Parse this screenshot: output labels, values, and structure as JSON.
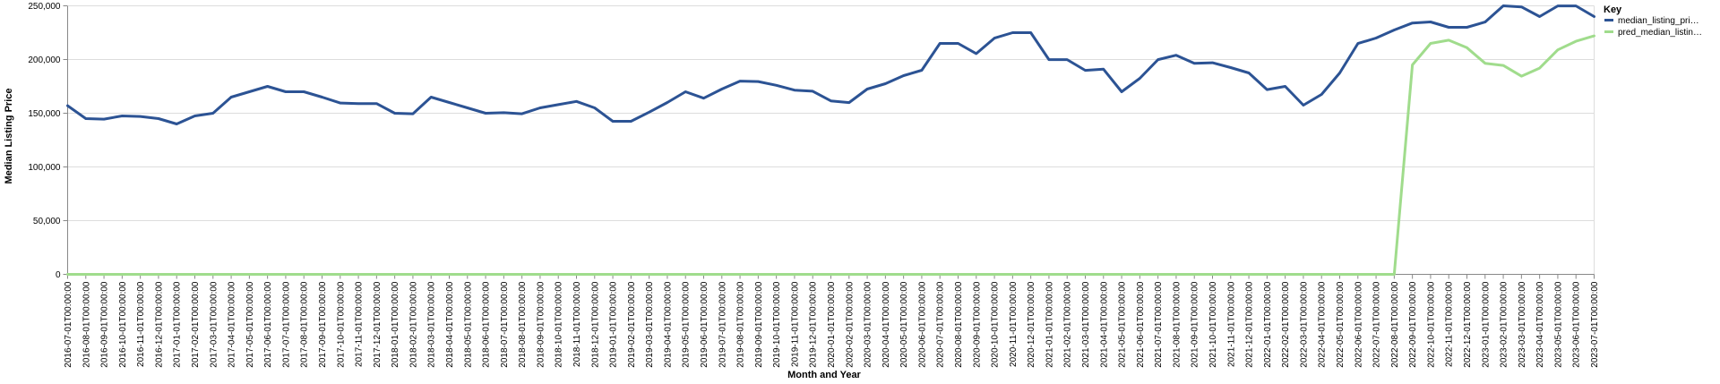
{
  "chart_data": {
    "type": "line",
    "xlabel": "Month and Year",
    "ylabel": "Median Listing Price",
    "ylim": [
      0,
      250000
    ],
    "y_ticks": [
      "0",
      "50,000",
      "100,000",
      "150,000",
      "200,000",
      "250,000"
    ],
    "grid": true,
    "legend": {
      "title": "Key",
      "placement": "top-right"
    },
    "x": [
      "2016-07-01T00:00:00",
      "2016-08-01T00:00:00",
      "2016-09-01T00:00:00",
      "2016-10-01T00:00:00",
      "2016-11-01T00:00:00",
      "2016-12-01T00:00:00",
      "2017-01-01T00:00:00",
      "2017-02-01T00:00:00",
      "2017-03-01T00:00:00",
      "2017-04-01T00:00:00",
      "2017-05-01T00:00:00",
      "2017-06-01T00:00:00",
      "2017-07-01T00:00:00",
      "2017-08-01T00:00:00",
      "2017-09-01T00:00:00",
      "2017-10-01T00:00:00",
      "2017-11-01T00:00:00",
      "2017-12-01T00:00:00",
      "2018-01-01T00:00:00",
      "2018-02-01T00:00:00",
      "2018-03-01T00:00:00",
      "2018-04-01T00:00:00",
      "2018-05-01T00:00:00",
      "2018-06-01T00:00:00",
      "2018-07-01T00:00:00",
      "2018-08-01T00:00:00",
      "2018-09-01T00:00:00",
      "2018-10-01T00:00:00",
      "2018-11-01T00:00:00",
      "2018-12-01T00:00:00",
      "2019-01-01T00:00:00",
      "2019-02-01T00:00:00",
      "2019-03-01T00:00:00",
      "2019-04-01T00:00:00",
      "2019-05-01T00:00:00",
      "2019-06-01T00:00:00",
      "2019-07-01T00:00:00",
      "2019-08-01T00:00:00",
      "2019-09-01T00:00:00",
      "2019-10-01T00:00:00",
      "2019-11-01T00:00:00",
      "2019-12-01T00:00:00",
      "2020-01-01T00:00:00",
      "2020-02-01T00:00:00",
      "2020-03-01T00:00:00",
      "2020-04-01T00:00:00",
      "2020-05-01T00:00:00",
      "2020-06-01T00:00:00",
      "2020-07-01T00:00:00",
      "2020-08-01T00:00:00",
      "2020-09-01T00:00:00",
      "2020-10-01T00:00:00",
      "2020-11-01T00:00:00",
      "2020-12-01T00:00:00",
      "2021-01-01T00:00:00",
      "2021-02-01T00:00:00",
      "2021-03-01T00:00:00",
      "2021-04-01T00:00:00",
      "2021-05-01T00:00:00",
      "2021-06-01T00:00:00",
      "2021-07-01T00:00:00",
      "2021-08-01T00:00:00",
      "2021-09-01T00:00:00",
      "2021-10-01T00:00:00",
      "2021-11-01T00:00:00",
      "2021-12-01T00:00:00",
      "2022-01-01T00:00:00",
      "2022-02-01T00:00:00",
      "2022-03-01T00:00:00",
      "2022-04-01T00:00:00",
      "2022-05-01T00:00:00",
      "2022-06-01T00:00:00",
      "2022-07-01T00:00:00",
      "2022-08-01T00:00:00",
      "2022-09-01T00:00:00",
      "2022-10-01T00:00:00",
      "2022-11-01T00:00:00",
      "2022-12-01T00:00:00",
      "2023-01-01T00:00:00",
      "2023-02-01T00:00:00",
      "2023-03-01T00:00:00",
      "2023-04-01T00:00:00",
      "2023-05-01T00:00:00",
      "2023-06-01T00:00:00",
      "2023-07-01T00:00:00"
    ],
    "series": [
      {
        "name": "median_listing_pri…",
        "color": "#2c5394",
        "values": [
          157000,
          145000,
          144500,
          147500,
          147000,
          145000,
          140000,
          147500,
          150000,
          165000,
          170000,
          175000,
          170000,
          170000,
          165000,
          159500,
          159000,
          159000,
          150000,
          149500,
          165000,
          160000,
          155000,
          150000,
          150500,
          149500,
          155000,
          158000,
          161000,
          155000,
          142500,
          142500,
          151000,
          160000,
          170000,
          164000,
          172500,
          179900,
          179500,
          176000,
          171500,
          170500,
          161500,
          159900,
          172500,
          177500,
          185000,
          190000,
          215000,
          215000,
          205500,
          219900,
          225000,
          225000,
          199900,
          199900,
          189900,
          191000,
          170000,
          182500,
          199900,
          204000,
          196500,
          197000,
          192500,
          187500,
          172000,
          175000,
          157500,
          167500,
          187500,
          214900,
          220000,
          227500,
          234000,
          235000,
          230000,
          230000,
          234900,
          250000,
          249000,
          240000,
          249900,
          249900,
          240000
        ]
      },
      {
        "name": "pred_median_listin…",
        "color": "#a0dc8c",
        "values": [
          0,
          0,
          0,
          0,
          0,
          0,
          0,
          0,
          0,
          0,
          0,
          0,
          0,
          0,
          0,
          0,
          0,
          0,
          0,
          0,
          0,
          0,
          0,
          0,
          0,
          0,
          0,
          0,
          0,
          0,
          0,
          0,
          0,
          0,
          0,
          0,
          0,
          0,
          0,
          0,
          0,
          0,
          0,
          0,
          0,
          0,
          0,
          0,
          0,
          0,
          0,
          0,
          0,
          0,
          0,
          0,
          0,
          0,
          0,
          0,
          0,
          0,
          0,
          0,
          0,
          0,
          0,
          0,
          0,
          0,
          0,
          0,
          0,
          0,
          195000,
          215000,
          218000,
          211000,
          196500,
          194500,
          184500,
          192000,
          209000,
          217000,
          222000
        ]
      }
    ]
  }
}
